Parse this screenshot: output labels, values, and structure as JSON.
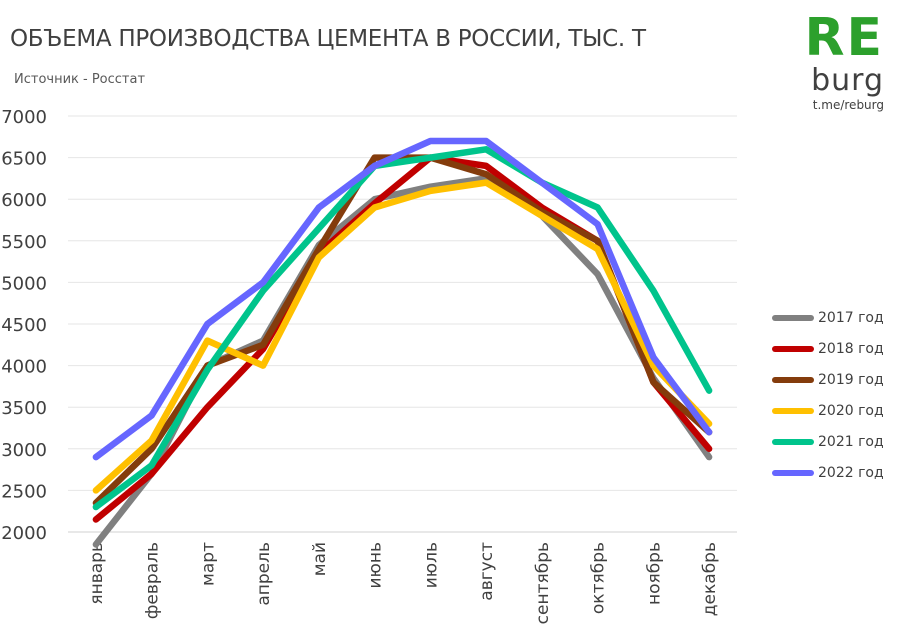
{
  "header": {
    "title": "ОБЪЕМА ПРОИЗВОДСТВА ЦЕМЕНТА В РОССИИ, ТЫС. Т",
    "source": "Источник - Росстат"
  },
  "logo": {
    "top": "RE",
    "bottom": "burg",
    "link": "t.me/reburg"
  },
  "chart_data": {
    "type": "line",
    "title": "ОБЪЕМА ПРОИЗВОДСТВА ЦЕМЕНТА В РОССИИ, ТЫС. Т",
    "subtitle": "Источник - Росстат",
    "xlabel": "",
    "ylabel": "",
    "categories": [
      "январь",
      "февраль",
      "март",
      "апрель",
      "май",
      "июнь",
      "июль",
      "август",
      "сентябрь",
      "октябрь",
      "ноябрь",
      "декабрь"
    ],
    "ylim": [
      2000,
      7000
    ],
    "yticks": [
      2000,
      2500,
      3000,
      3500,
      4000,
      4500,
      5000,
      5500,
      6000,
      6500,
      7000
    ],
    "grid": "horizontal",
    "legend_position": "right",
    "series": [
      {
        "name": "2017 год",
        "color": "#808080",
        "values": [
          1850,
          2700,
          4000,
          4300,
          5450,
          6000,
          6150,
          6250,
          5800,
          5100,
          3850,
          2900
        ]
      },
      {
        "name": "2018 год",
        "color": "#c00000",
        "values": [
          2150,
          2700,
          3500,
          4200,
          5350,
          5950,
          6500,
          6400,
          5900,
          5500,
          3800,
          3000
        ]
      },
      {
        "name": "2019 год",
        "color": "#843c0c",
        "values": [
          2350,
          3000,
          4000,
          4250,
          5400,
          6500,
          6500,
          6300,
          5850,
          5500,
          3800,
          3200
        ]
      },
      {
        "name": "2020 год",
        "color": "#ffc000",
        "values": [
          2500,
          3100,
          4300,
          4000,
          5300,
          5900,
          6100,
          6200,
          5800,
          5400,
          4000,
          3300
        ]
      },
      {
        "name": "2021 год",
        "color": "#00c48c",
        "values": [
          2300,
          2800,
          3950,
          4900,
          5650,
          6400,
          6500,
          6600,
          6200,
          5900,
          4900,
          3700
        ]
      },
      {
        "name": "2022 год",
        "color": "#6666ff",
        "values": [
          2900,
          3400,
          4500,
          5000,
          5900,
          6400,
          6700,
          6700,
          6200,
          5700,
          4100,
          3200
        ]
      }
    ]
  }
}
